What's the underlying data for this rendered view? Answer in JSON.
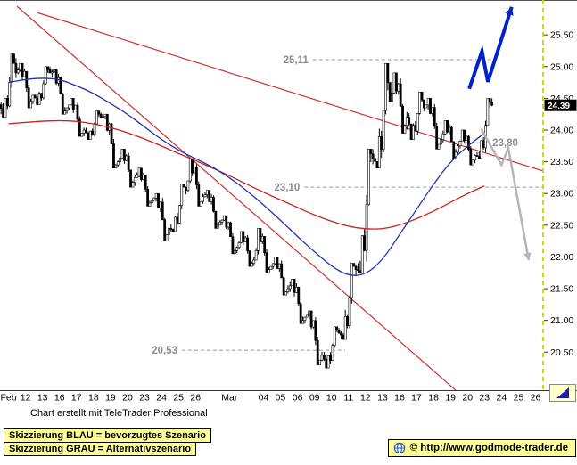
{
  "chart_data": {
    "type": "candlestick",
    "ylim": [
      19.9,
      26.05
    ],
    "slots_total": 32,
    "bars_per_day": 8,
    "y_ticks": [
      25.5,
      25.0,
      24.5,
      24.0,
      23.5,
      23.0,
      22.5,
      22.0,
      21.5,
      21.0,
      20.5
    ],
    "x_axis": [
      {
        "label": "Feb",
        "slot": 0
      },
      {
        "label": "12",
        "slot": 1
      },
      {
        "label": "13",
        "slot": 2
      },
      {
        "label": "16",
        "slot": 3
      },
      {
        "label": "17",
        "slot": 4
      },
      {
        "label": "18",
        "slot": 5
      },
      {
        "label": "19",
        "slot": 6
      },
      {
        "label": "20",
        "slot": 7
      },
      {
        "label": "23",
        "slot": 8
      },
      {
        "label": "24",
        "slot": 9
      },
      {
        "label": "25",
        "slot": 10
      },
      {
        "label": "26",
        "slot": 11
      },
      {
        "label": "Mar",
        "slot": 13
      },
      {
        "label": "04",
        "slot": 15
      },
      {
        "label": "05",
        "slot": 16
      },
      {
        "label": "06",
        "slot": 17
      },
      {
        "label": "09",
        "slot": 18
      },
      {
        "label": "10",
        "slot": 19
      },
      {
        "label": "11",
        "slot": 20
      },
      {
        "label": "12",
        "slot": 21
      },
      {
        "label": "13",
        "slot": 22
      },
      {
        "label": "16",
        "slot": 23
      },
      {
        "label": "17",
        "slot": 24
      },
      {
        "label": "18",
        "slot": 25
      },
      {
        "label": "19",
        "slot": 26
      },
      {
        "label": "20",
        "slot": 27
      },
      {
        "label": "23",
        "slot": 28
      },
      {
        "label": "24",
        "slot": 29
      },
      {
        "label": "25",
        "slot": 30
      },
      {
        "label": "26",
        "slot": 31
      }
    ],
    "candles": [
      {
        "date": "Feb 11",
        "o": 24.4,
        "h": 25.2,
        "l": 24.2,
        "c": 24.9
      },
      {
        "date": "Feb 12",
        "o": 24.9,
        "h": 25.05,
        "l": 24.35,
        "c": 24.55
      },
      {
        "date": "Feb 13",
        "o": 24.55,
        "h": 25.0,
        "l": 24.4,
        "c": 24.9
      },
      {
        "date": "Feb 16",
        "o": 24.9,
        "h": 24.95,
        "l": 24.25,
        "c": 24.35
      },
      {
        "date": "Feb 17",
        "o": 24.35,
        "h": 24.5,
        "l": 23.9,
        "c": 24.0
      },
      {
        "date": "Feb 18",
        "o": 24.0,
        "h": 24.3,
        "l": 23.85,
        "c": 24.2
      },
      {
        "date": "Feb 19",
        "o": 24.2,
        "h": 24.25,
        "l": 23.4,
        "c": 23.5
      },
      {
        "date": "Feb 20",
        "o": 23.5,
        "h": 23.7,
        "l": 23.1,
        "c": 23.25
      },
      {
        "date": "Feb 23",
        "o": 23.25,
        "h": 23.4,
        "l": 22.8,
        "c": 22.9
      },
      {
        "date": "Feb 24",
        "o": 22.9,
        "h": 23.0,
        "l": 22.25,
        "c": 22.45
      },
      {
        "date": "Feb 25",
        "o": 22.45,
        "h": 23.15,
        "l": 22.4,
        "c": 23.05
      },
      {
        "date": "Feb 26",
        "o": 23.05,
        "h": 23.55,
        "l": 22.8,
        "c": 22.95
      },
      {
        "date": "Feb 27",
        "o": 22.95,
        "h": 23.05,
        "l": 22.45,
        "c": 22.55
      },
      {
        "date": "Mar 02",
        "o": 22.55,
        "h": 22.65,
        "l": 22.05,
        "c": 22.15
      },
      {
        "date": "Mar 03",
        "o": 22.15,
        "h": 22.4,
        "l": 21.85,
        "c": 21.95
      },
      {
        "date": "Mar 04",
        "o": 21.95,
        "h": 22.45,
        "l": 21.75,
        "c": 21.85
      },
      {
        "date": "Mar 05",
        "o": 21.85,
        "h": 22.0,
        "l": 21.4,
        "c": 21.5
      },
      {
        "date": "Mar 06",
        "o": 21.5,
        "h": 21.65,
        "l": 20.95,
        "c": 21.05
      },
      {
        "date": "Mar 09",
        "o": 21.05,
        "h": 21.15,
        "l": 20.3,
        "c": 20.45
      },
      {
        "date": "Mar 10",
        "o": 20.45,
        "h": 20.9,
        "l": 20.25,
        "c": 20.8
      },
      {
        "date": "Mar 11",
        "o": 20.8,
        "h": 21.9,
        "l": 20.7,
        "c": 21.8
      },
      {
        "date": "Mar 12",
        "o": 21.8,
        "h": 23.7,
        "l": 21.75,
        "c": 23.55
      },
      {
        "date": "Mar 13",
        "o": 23.55,
        "h": 25.05,
        "l": 23.4,
        "c": 24.45
      },
      {
        "date": "Mar 16",
        "o": 24.45,
        "h": 24.9,
        "l": 23.95,
        "c": 24.2
      },
      {
        "date": "Mar 17",
        "o": 24.2,
        "h": 24.6,
        "l": 23.85,
        "c": 24.35
      },
      {
        "date": "Mar 18",
        "o": 24.35,
        "h": 24.5,
        "l": 23.7,
        "c": 23.85
      },
      {
        "date": "Mar 19",
        "o": 23.85,
        "h": 24.15,
        "l": 23.55,
        "c": 23.75
      },
      {
        "date": "Mar 20",
        "o": 23.75,
        "h": 24.0,
        "l": 23.45,
        "c": 23.6
      },
      {
        "date": "Mar 23",
        "o": 23.6,
        "h": 24.5,
        "l": 23.55,
        "c": 24.39
      }
    ],
    "ma_blue": [
      24.75,
      24.8,
      24.82,
      24.8,
      24.7,
      24.58,
      24.42,
      24.25,
      24.05,
      23.85,
      23.68,
      23.55,
      23.42,
      23.25,
      23.05,
      22.82,
      22.58,
      22.32,
      22.08,
      21.85,
      21.7,
      21.72,
      21.95,
      22.35,
      22.75,
      23.15,
      23.5,
      23.75,
      23.95
    ],
    "ma_red": [
      24.1,
      24.12,
      24.14,
      24.15,
      24.14,
      24.1,
      24.04,
      23.96,
      23.86,
      23.75,
      23.63,
      23.52,
      23.4,
      23.28,
      23.15,
      23.02,
      22.9,
      22.78,
      22.66,
      22.56,
      22.48,
      22.44,
      22.44,
      22.5,
      22.6,
      22.72,
      22.86,
      23.0,
      23.12
    ],
    "trendlines": [
      {
        "from": [
          1.0,
          25.95
        ],
        "to": [
          26.8,
          19.9
        ]
      },
      {
        "from": [
          2.2,
          25.85
        ],
        "to": [
          32.0,
          23.35
        ]
      }
    ],
    "levels": [
      {
        "price": 25.11,
        "label": "25,11",
        "from": 18.4,
        "to": 28.9,
        "label_side": "left"
      },
      {
        "price": 23.8,
        "label": "23,80",
        "from": 26.9,
        "to": 28.7,
        "label_side": "right"
      },
      {
        "price": 23.1,
        "label": "23,10",
        "from": 17.9,
        "to": 32.0,
        "label_side": "left"
      },
      {
        "price": 20.53,
        "label": "20,53",
        "from": 10.7,
        "to": 20.3,
        "label_side": "left"
      }
    ],
    "scenarios": {
      "blue": {
        "label": "bevorzugtes Szenario",
        "points": [
          [
            27.6,
            24.65
          ],
          [
            28.35,
            25.24
          ],
          [
            28.7,
            24.76
          ],
          [
            30.1,
            25.94
          ]
        ]
      },
      "gray": {
        "label": "Alternativszenario",
        "points": [
          [
            28.3,
            24.02
          ],
          [
            29.5,
            23.45
          ],
          [
            29.9,
            23.72
          ],
          [
            31.1,
            21.95
          ]
        ]
      }
    },
    "last_price": 24.39,
    "last_price_label": "24.39",
    "colors": {
      "candle": "#000000",
      "ma_fast": "#2233aa",
      "ma_slow": "#cc2222",
      "trendline": "#cc3333",
      "level": "#9a9a9a",
      "level_label": "#8c8c8c",
      "scenario_blue": "#0022cc",
      "scenario_gray": "#b5b5b5",
      "now_line": "#d6d600",
      "price_tag_bg": "#000000",
      "price_tag_text": "#ffffff",
      "box_bg": "#ffff99"
    }
  },
  "footer": {
    "credit": "Chart erstellt mit TeleTrader Professional",
    "legend": [
      "Skizzierung BLAU = bevorzugtes Szenario",
      "Skizzierung GRAU = Alternativszenario"
    ],
    "copyright": "© http://www.godmode-trader.de"
  }
}
